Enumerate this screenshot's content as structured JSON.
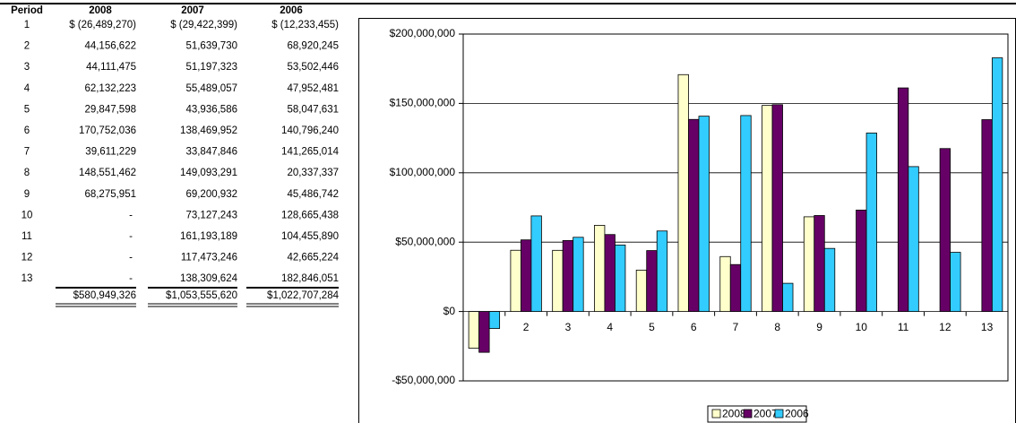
{
  "table": {
    "header": [
      "Period",
      "2008",
      "2007",
      "2006"
    ],
    "rows": [
      [
        "1",
        "$ (26,489,270)",
        "$ (29,422,399)",
        "$ (12,233,455)"
      ],
      [
        "2",
        "44,156,622",
        "51,639,730",
        "68,920,245"
      ],
      [
        "3",
        "44,111,475",
        "51,197,323",
        "53,502,446"
      ],
      [
        "4",
        "62,132,223",
        "55,489,057",
        "47,952,481"
      ],
      [
        "5",
        "29,847,598",
        "43,936,586",
        "58,047,631"
      ],
      [
        "6",
        "170,752,036",
        "138,469,952",
        "140,796,240"
      ],
      [
        "7",
        "39,611,229",
        "33,847,846",
        "141,265,014"
      ],
      [
        "8",
        "148,551,462",
        "149,093,291",
        "20,337,337"
      ],
      [
        "9",
        "68,275,951",
        "69,200,932",
        "45,486,742"
      ],
      [
        "10",
        "-",
        "73,127,243",
        "128,665,438"
      ],
      [
        "11",
        "-",
        "161,193,189",
        "104,455,890"
      ],
      [
        "12",
        "-",
        "117,473,246",
        "42,665,224"
      ],
      [
        "13",
        "-",
        "138,309,624",
        "182,846,051"
      ]
    ],
    "totals": [
      "$580,949,326",
      "$1,053,555,620",
      "$1,022,707,284"
    ]
  },
  "chart_data": {
    "type": "bar",
    "categories": [
      "1",
      "2",
      "3",
      "4",
      "5",
      "6",
      "7",
      "8",
      "9",
      "10",
      "11",
      "12",
      "13"
    ],
    "series": [
      {
        "name": "2008",
        "color": "#ffffcc",
        "values": [
          -26489270,
          44156622,
          44111475,
          62132223,
          29847598,
          170752036,
          39611229,
          148551462,
          68275951,
          null,
          null,
          null,
          null
        ]
      },
      {
        "name": "2007",
        "color": "#660066",
        "values": [
          -29422399,
          51639730,
          51197323,
          55489057,
          43936586,
          138469952,
          33847846,
          149093291,
          69200932,
          73127243,
          161193189,
          117473246,
          138309624
        ]
      },
      {
        "name": "2006",
        "color": "#33ccff",
        "values": [
          -12233455,
          68920245,
          53502446,
          47952481,
          58047631,
          140796240,
          141265014,
          20337337,
          45486742,
          128665438,
          104455890,
          42665224,
          182846051
        ]
      }
    ],
    "ylim": [
      -50000000,
      200000000
    ],
    "yticks": [
      {
        "value": -50000000,
        "label": "-$50,000,000"
      },
      {
        "value": 0,
        "label": "$0"
      },
      {
        "value": 50000000,
        "label": "$50,000,000"
      },
      {
        "value": 100000000,
        "label": "$100,000,000"
      },
      {
        "value": 150000000,
        "label": "$150,000,000"
      },
      {
        "value": 200000000,
        "label": "$200,000,000"
      }
    ],
    "grid": true,
    "legend": "bottom"
  }
}
